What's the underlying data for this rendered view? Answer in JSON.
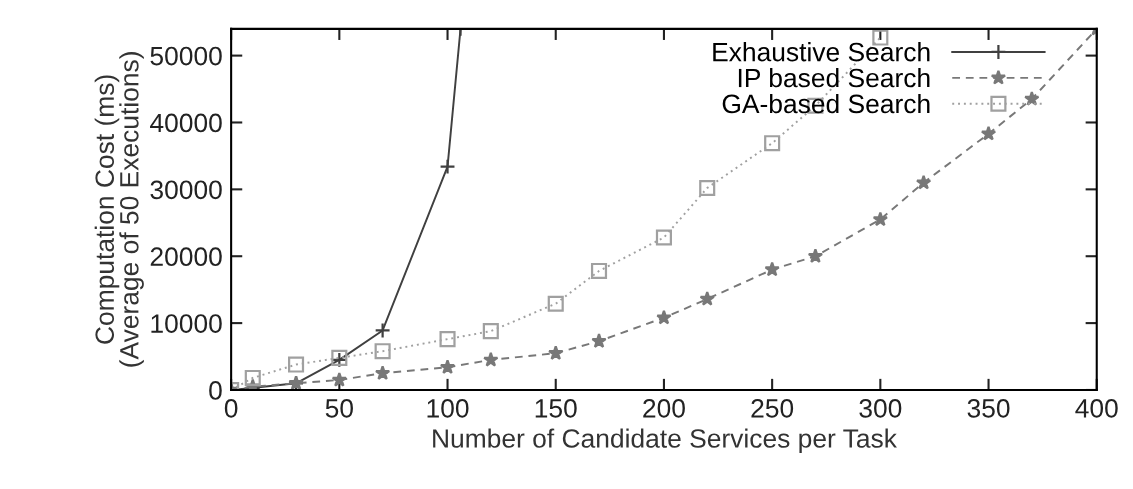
{
  "chart_data": {
    "type": "line",
    "xlabel": "Number of Candidate Services per Task",
    "ylabel": "Computation Cost (ms)\n(Average of 50 Executions)",
    "xlim": [
      0,
      400
    ],
    "ylim": [
      0,
      54000
    ],
    "xticks": [
      0,
      50,
      100,
      150,
      200,
      250,
      300,
      350,
      400
    ],
    "yticks": [
      0,
      10000,
      20000,
      30000,
      40000,
      50000
    ],
    "grid": false,
    "legend": "top right",
    "series": [
      {
        "name": "Exhaustive Search",
        "color": "#404040",
        "marker": "cross",
        "line_style": "solid",
        "x": [
          0,
          10,
          30,
          50,
          70,
          100,
          106
        ],
        "values": [
          0,
          300,
          1000,
          4500,
          8900,
          33400,
          54000
        ]
      },
      {
        "name": "IP based Search",
        "color": "#787878",
        "marker": "star",
        "line_style": "dashed",
        "x": [
          0,
          10,
          30,
          50,
          70,
          100,
          120,
          150,
          170,
          200,
          220,
          250,
          270,
          300,
          320,
          350,
          370,
          400
        ],
        "values": [
          0,
          500,
          1000,
          1500,
          2500,
          3400,
          4500,
          5500,
          7300,
          10800,
          13600,
          18000,
          20000,
          25500,
          31000,
          38300,
          43500,
          54000
        ]
      },
      {
        "name": "GA-based Search",
        "color": "#a0a0a0",
        "marker": "square",
        "line_style": "dotted",
        "x": [
          0,
          10,
          30,
          50,
          70,
          100,
          120,
          150,
          170,
          200,
          220,
          250,
          270,
          300
        ],
        "values": [
          0,
          1800,
          3800,
          4800,
          5800,
          7600,
          8800,
          12900,
          17800,
          22800,
          30200,
          36900,
          42500,
          52700
        ]
      }
    ]
  }
}
